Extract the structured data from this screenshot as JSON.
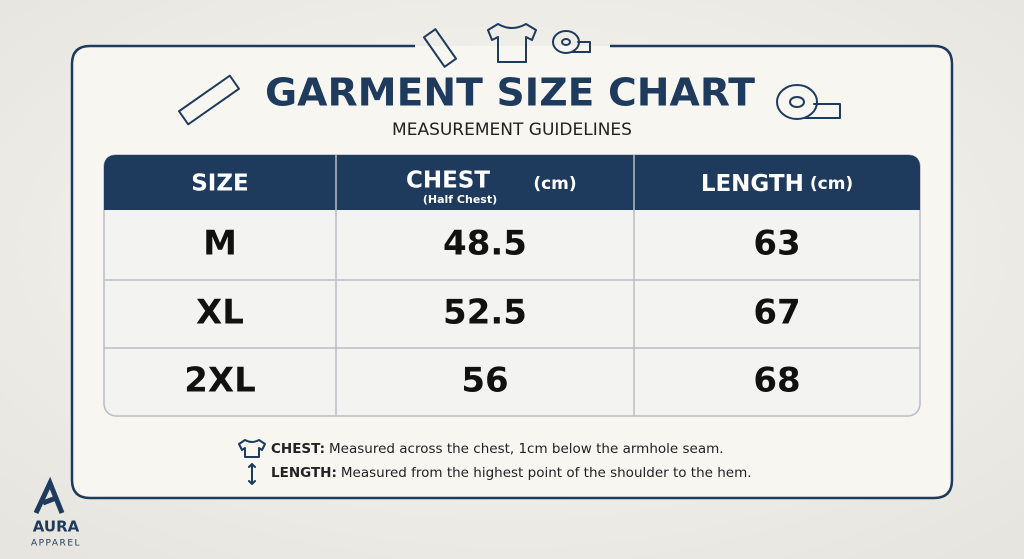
{
  "header": {
    "title": "GARMENT SIZE CHART",
    "subtitle": "MEASUREMENT GUIDELINES"
  },
  "table": {
    "columns": [
      {
        "label": "SIZE"
      },
      {
        "label": "CHEST",
        "note": "(Half Chest)",
        "unit": "(cm)"
      },
      {
        "label": "LENGTH",
        "unit": "(cm)"
      }
    ],
    "rows": [
      [
        "M",
        48.5,
        63
      ],
      [
        "XL",
        52.5,
        67
      ],
      [
        "2XL",
        56,
        68
      ]
    ]
  },
  "notes": [
    {
      "term": "CHEST:",
      "text": "Measured across the chest, 1cm below the armhole seam."
    },
    {
      "term": "LENGTH:",
      "text": "Measured from the highest point of the shoulder to the hem."
    }
  ],
  "brand": {
    "name": "AURA",
    "tagline": "APPAREL"
  }
}
